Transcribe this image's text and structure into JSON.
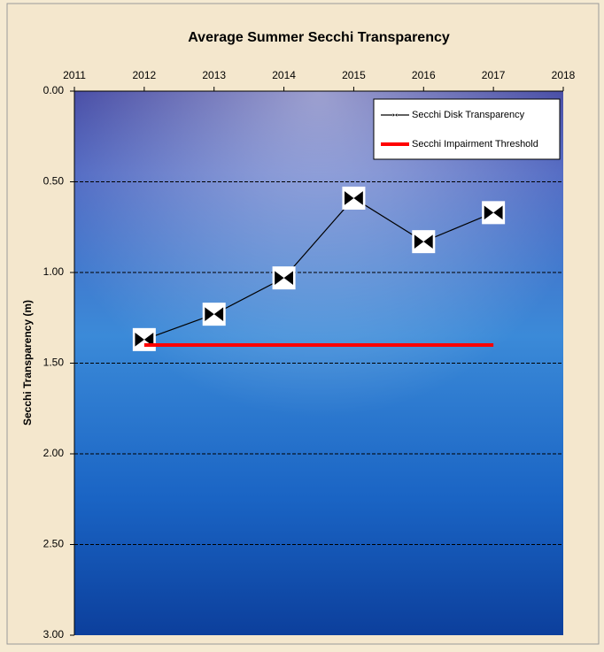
{
  "chart_data": {
    "type": "line",
    "title": "Average Summer Secchi Transparency",
    "y_label": "Secchi Transparency (m)",
    "xlim": [
      2011,
      2018
    ],
    "xticks": [
      2011,
      2012,
      2013,
      2014,
      2015,
      2016,
      2017,
      2018
    ],
    "ylim": [
      0,
      3
    ],
    "y_inverted": true,
    "yticks": [
      {
        "value": 0,
        "label": "0.00"
      },
      {
        "value": 0.5,
        "label": "0.50"
      },
      {
        "value": 1,
        "label": "1.00"
      },
      {
        "value": 1.5,
        "label": "1.50"
      },
      {
        "value": 2,
        "label": "2.00"
      },
      {
        "value": 2.5,
        "label": "2.50"
      },
      {
        "value": 3,
        "label": "3.00"
      }
    ],
    "grid": true,
    "legend": "top-right",
    "series": [
      {
        "name": "Secchi Disk Transparency",
        "color": "#000000",
        "marker": "secchi-disk",
        "x": [
          2012,
          2013,
          2014,
          2015,
          2016,
          2017
        ],
        "values": [
          1.37,
          1.23,
          1.03,
          0.59,
          0.83,
          0.67
        ]
      },
      {
        "name": "Secchi Impairment Threshold",
        "color": "#ff0000",
        "marker": "none",
        "x": [
          2012,
          2017
        ],
        "values": [
          1.4,
          1.4
        ]
      }
    ]
  }
}
